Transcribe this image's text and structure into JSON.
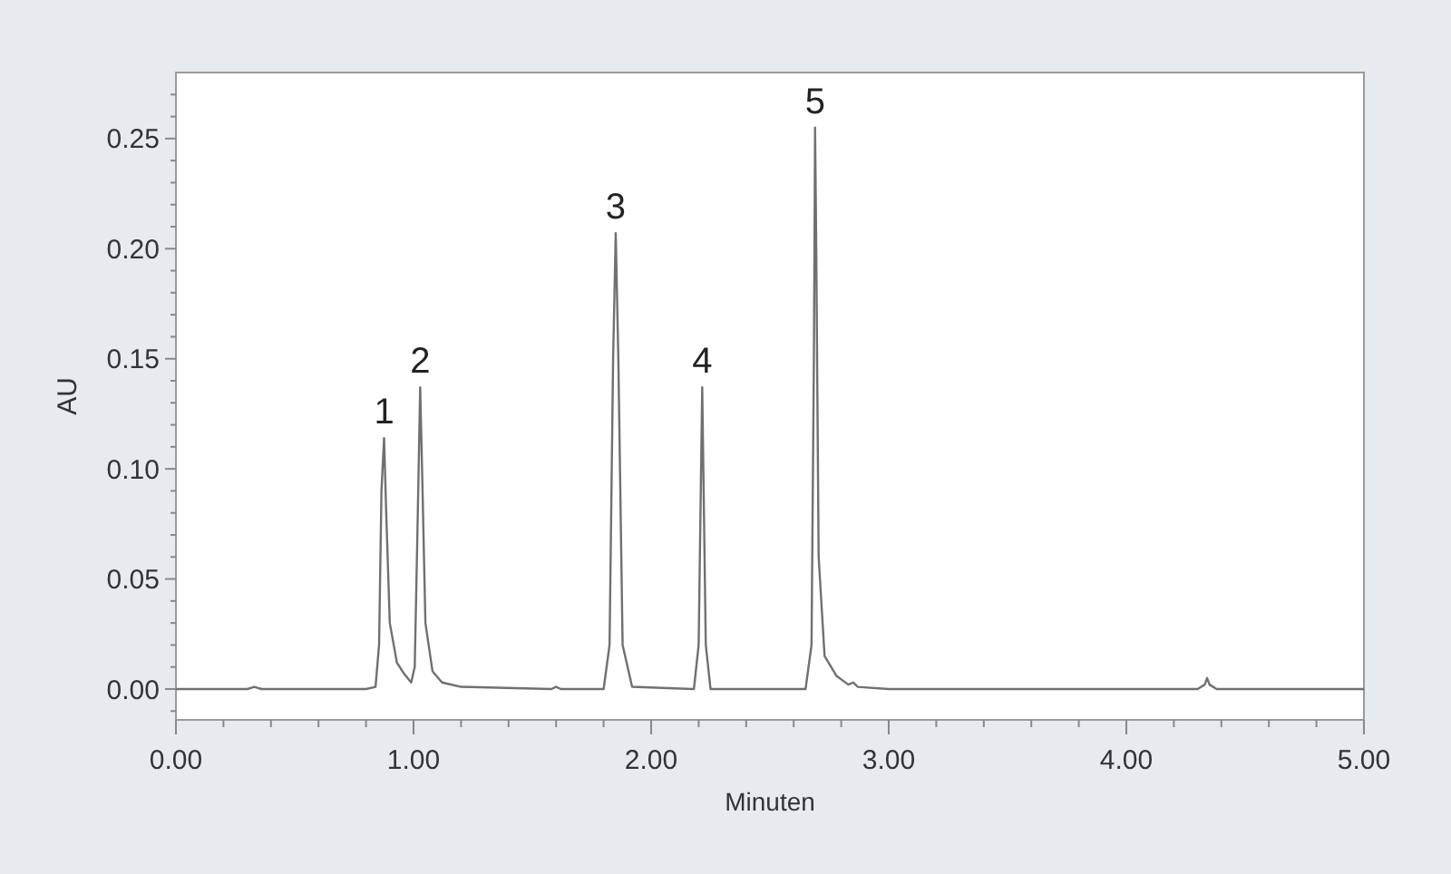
{
  "chart_data": {
    "type": "line",
    "xlabel": "Minuten",
    "ylabel": "AU",
    "x": [
      0,
      0.3,
      0.33,
      0.36,
      0.8,
      0.84,
      0.855,
      0.865,
      0.876,
      0.885,
      0.9,
      0.93,
      0.96,
      0.99,
      1.005,
      1.018,
      1.028,
      1.038,
      1.05,
      1.08,
      1.12,
      1.2,
      1.58,
      1.6,
      1.62,
      1.8,
      1.825,
      1.84,
      1.851,
      1.862,
      1.88,
      1.92,
      2.18,
      2.2,
      2.215,
      2.23,
      2.25,
      2.5,
      2.65,
      2.675,
      2.685,
      2.69,
      2.695,
      2.705,
      2.73,
      2.78,
      2.83,
      2.85,
      2.87,
      3.0,
      4.3,
      4.33,
      4.34,
      4.35,
      4.38,
      5.0
    ],
    "series": [
      {
        "color": "#707070",
        "values": [
          0,
          0,
          0.001,
          0,
          0,
          0.001,
          0.02,
          0.09,
          0.114,
          0.08,
          0.03,
          0.012,
          0.007,
          0.003,
          0.01,
          0.08,
          0.137,
          0.09,
          0.03,
          0.008,
          0.003,
          0.001,
          0,
          0.001,
          0,
          0,
          0.02,
          0.15,
          0.207,
          0.15,
          0.02,
          0.001,
          0,
          0.02,
          0.137,
          0.02,
          0,
          0,
          0,
          0.02,
          0.15,
          0.255,
          0.2,
          0.06,
          0.015,
          0.006,
          0.002,
          0.003,
          0.001,
          0,
          0,
          0.002,
          0.005,
          0.002,
          0,
          0
        ]
      }
    ],
    "xlim": [
      0,
      5
    ],
    "ylim": [
      -0.014,
      0.28
    ],
    "xticks": [
      {
        "value": 0,
        "label": "0.00"
      },
      {
        "value": 0.2,
        "label": null
      },
      {
        "value": 0.4,
        "label": null
      },
      {
        "value": 0.6,
        "label": null
      },
      {
        "value": 0.8,
        "label": null
      },
      {
        "value": 1,
        "label": "1.00"
      },
      {
        "value": 1.2,
        "label": null
      },
      {
        "value": 1.4,
        "label": null
      },
      {
        "value": 1.6,
        "label": null
      },
      {
        "value": 1.8,
        "label": null
      },
      {
        "value": 2,
        "label": "2.00"
      },
      {
        "value": 2.2,
        "label": null
      },
      {
        "value": 2.4,
        "label": null
      },
      {
        "value": 2.6,
        "label": null
      },
      {
        "value": 2.8,
        "label": null
      },
      {
        "value": 3,
        "label": "3.00"
      },
      {
        "value": 3.2,
        "label": null
      },
      {
        "value": 3.4,
        "label": null
      },
      {
        "value": 3.6,
        "label": null
      },
      {
        "value": 3.8,
        "label": null
      },
      {
        "value": 4,
        "label": "4.00"
      },
      {
        "value": 4.2,
        "label": null
      },
      {
        "value": 4.4,
        "label": null
      },
      {
        "value": 4.6,
        "label": null
      },
      {
        "value": 4.8,
        "label": null
      },
      {
        "value": 5,
        "label": "5.00"
      }
    ],
    "yticks": [
      {
        "value": -0.01,
        "label": null
      },
      {
        "value": 0,
        "label": "0.00"
      },
      {
        "value": 0.01,
        "label": null
      },
      {
        "value": 0.02,
        "label": null
      },
      {
        "value": 0.03,
        "label": null
      },
      {
        "value": 0.04,
        "label": null
      },
      {
        "value": 0.05,
        "label": "0.05"
      },
      {
        "value": 0.06,
        "label": null
      },
      {
        "value": 0.07,
        "label": null
      },
      {
        "value": 0.08,
        "label": null
      },
      {
        "value": 0.09,
        "label": null
      },
      {
        "value": 0.1,
        "label": "0.10"
      },
      {
        "value": 0.11,
        "label": null
      },
      {
        "value": 0.12,
        "label": null
      },
      {
        "value": 0.13,
        "label": null
      },
      {
        "value": 0.14,
        "label": null
      },
      {
        "value": 0.15,
        "label": "0.15"
      },
      {
        "value": 0.16,
        "label": null
      },
      {
        "value": 0.17,
        "label": null
      },
      {
        "value": 0.18,
        "label": null
      },
      {
        "value": 0.19,
        "label": null
      },
      {
        "value": 0.2,
        "label": "0.20"
      },
      {
        "value": 0.21,
        "label": null
      },
      {
        "value": 0.22,
        "label": null
      },
      {
        "value": 0.23,
        "label": null
      },
      {
        "value": 0.24,
        "label": null
      },
      {
        "value": 0.25,
        "label": "0.25"
      },
      {
        "value": 0.26,
        "label": null
      },
      {
        "value": 0.27,
        "label": null
      }
    ],
    "annotations": [
      {
        "text": "1",
        "x": 0.876,
        "y": 0.114
      },
      {
        "text": "2",
        "x": 1.028,
        "y": 0.137
      },
      {
        "text": "3",
        "x": 1.851,
        "y": 0.207
      },
      {
        "text": "4",
        "x": 2.215,
        "y": 0.137
      },
      {
        "text": "5",
        "x": 2.69,
        "y": 0.255
      }
    ]
  }
}
